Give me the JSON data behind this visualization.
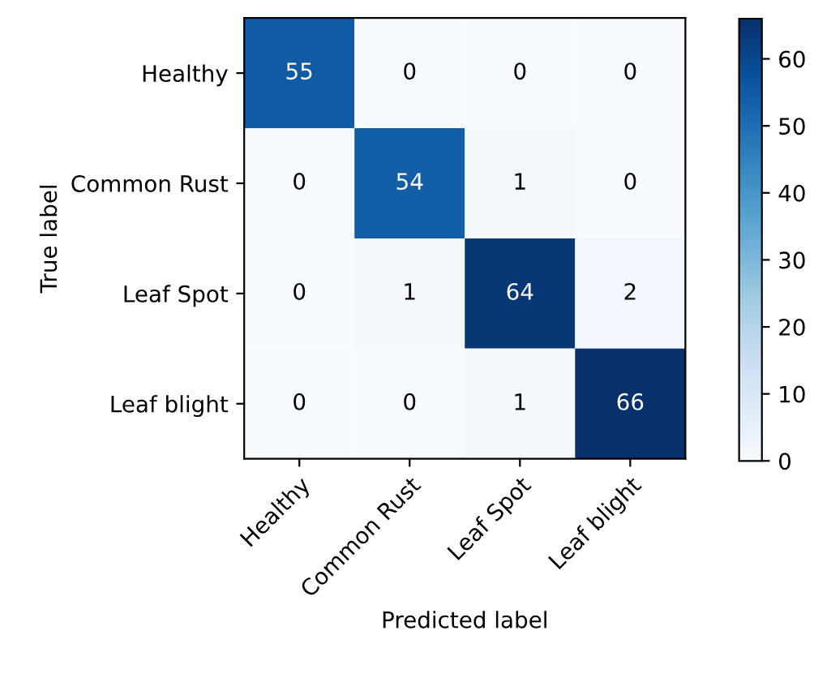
{
  "chart_data": {
    "type": "heatmap",
    "xlabel": "Predicted label",
    "ylabel": "True label",
    "categories": [
      "Healthy",
      "Common Rust",
      "Leaf Spot",
      "Leaf blight"
    ],
    "y_categories": [
      "Healthy",
      "Common Rust",
      "Leaf Spot",
      "Leaf blight"
    ],
    "cells": [
      [
        55,
        0,
        0,
        0
      ],
      [
        0,
        54,
        1,
        0
      ],
      [
        0,
        1,
        64,
        2
      ],
      [
        0,
        0,
        1,
        66
      ]
    ],
    "clim": [
      0,
      66
    ],
    "cticks": [
      0,
      10,
      20,
      30,
      40,
      50,
      60
    ],
    "data_labels": true,
    "grid": false
  }
}
